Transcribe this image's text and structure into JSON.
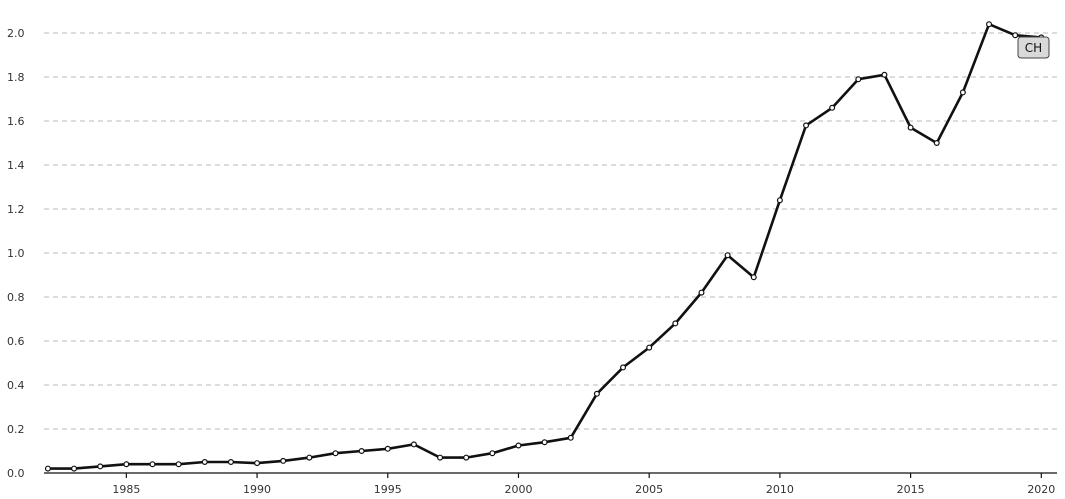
{
  "chart_data": {
    "type": "line",
    "title": "",
    "xlabel": "",
    "ylabel": "",
    "series": [
      {
        "name": "CH",
        "x": [
          1982,
          1983,
          1984,
          1985,
          1986,
          1987,
          1988,
          1989,
          1990,
          1991,
          1992,
          1993,
          1994,
          1995,
          1996,
          1997,
          1998,
          1999,
          2000,
          2001,
          2002,
          2003,
          2004,
          2005,
          2006,
          2007,
          2008,
          2009,
          2010,
          2011,
          2012,
          2013,
          2014,
          2015,
          2016,
          2017,
          2018,
          2019,
          2020
        ],
        "values": [
          0.02,
          0.02,
          0.03,
          0.04,
          0.04,
          0.04,
          0.05,
          0.05,
          0.045,
          0.055,
          0.07,
          0.09,
          0.1,
          0.11,
          0.13,
          0.07,
          0.07,
          0.09,
          0.125,
          0.14,
          0.16,
          0.36,
          0.48,
          0.57,
          0.68,
          0.82,
          0.99,
          0.89,
          1.24,
          1.58,
          1.66,
          1.79,
          1.81,
          1.57,
          1.5,
          1.73,
          2.04,
          1.99,
          1.98
        ]
      }
    ],
    "xlim": [
      1981.85,
      2020.6
    ],
    "ylim": [
      0,
      2.05
    ],
    "x_ticks": [
      1985,
      1990,
      1995,
      2000,
      2005,
      2010,
      2015,
      2020
    ],
    "y_ticks": [
      0,
      0.2,
      0.4,
      0.6,
      0.8,
      1.0,
      1.2,
      1.4,
      1.6,
      1.8,
      2.0
    ],
    "x_tick_labels": [
      "1985",
      "1990",
      "1995",
      "2000",
      "2005",
      "2010",
      "2015",
      "2020"
    ],
    "y_tick_labels": [
      "0.0",
      "0.2",
      "0.4",
      "0.6",
      "0.8",
      "1.0",
      "1.2",
      "1.4",
      "1.6",
      "1.8",
      "2.0"
    ],
    "grid": true,
    "legend": "series label badge at right end",
    "series_color": "#111111"
  },
  "badge": {
    "label": "CH"
  }
}
